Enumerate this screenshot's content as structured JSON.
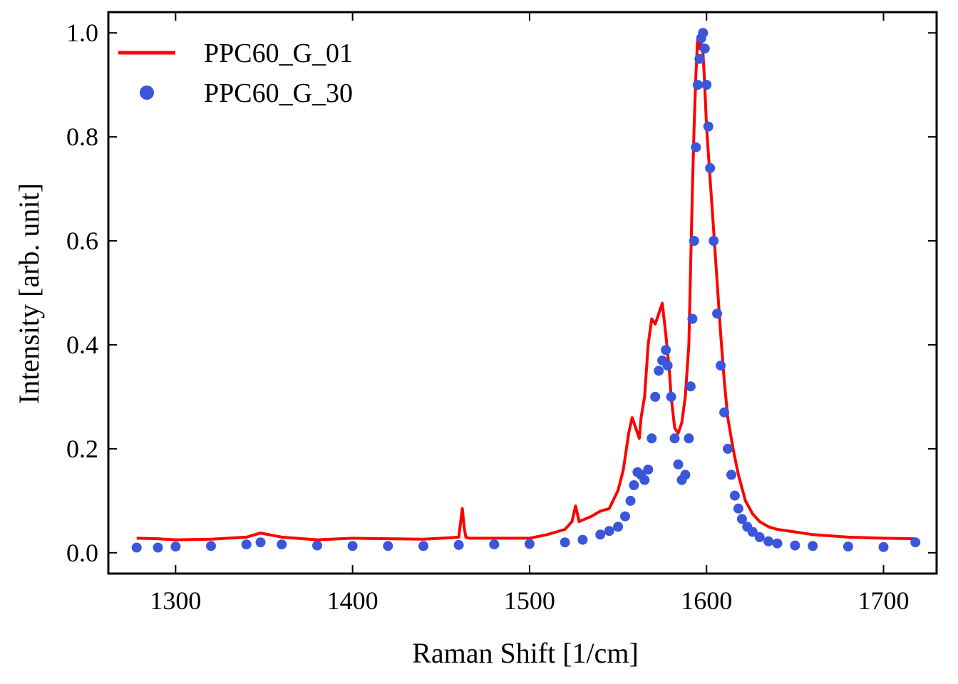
{
  "chart_data": {
    "type": "line",
    "xlabel": "Raman Shift [1/cm]",
    "ylabel": "Intensity [arb. unit]",
    "xlim": [
      1262,
      1730
    ],
    "ylim": [
      -0.04,
      1.04
    ],
    "x_ticks": [
      1300,
      1400,
      1500,
      1600,
      1700
    ],
    "x_tick_labels": [
      "1300",
      "1400",
      "1500",
      "1600",
      "1700"
    ],
    "y_ticks": [
      0.0,
      0.2,
      0.4,
      0.6,
      0.8,
      1.0
    ],
    "y_tick_labels": [
      "0.0",
      "0.2",
      "0.4",
      "0.6",
      "0.8",
      "1.0"
    ],
    "grid": false,
    "legend_position": "top-left",
    "series": [
      {
        "name": "PPC60_G_01",
        "style": "line",
        "color": "#ff0000",
        "x": [
          1278,
          1290,
          1300,
          1320,
          1340,
          1348,
          1360,
          1380,
          1400,
          1420,
          1440,
          1455,
          1460,
          1462,
          1463,
          1464,
          1466,
          1480,
          1500,
          1510,
          1520,
          1524,
          1526,
          1528,
          1535,
          1540,
          1545,
          1550,
          1553,
          1556,
          1558,
          1560,
          1562,
          1563,
          1565,
          1567,
          1569,
          1571,
          1573,
          1575,
          1577,
          1579,
          1580,
          1582,
          1584,
          1586,
          1588,
          1590,
          1591,
          1592,
          1593,
          1594,
          1595,
          1596,
          1597,
          1598,
          1599,
          1600,
          1602,
          1604,
          1606,
          1608,
          1610,
          1612,
          1615,
          1618,
          1622,
          1626,
          1630,
          1635,
          1640,
          1650,
          1660,
          1680,
          1700,
          1718
        ],
        "y": [
          0.028,
          0.027,
          0.025,
          0.026,
          0.03,
          0.038,
          0.03,
          0.025,
          0.028,
          0.027,
          0.026,
          0.029,
          0.03,
          0.085,
          0.05,
          0.03,
          0.028,
          0.028,
          0.028,
          0.035,
          0.045,
          0.06,
          0.09,
          0.06,
          0.07,
          0.08,
          0.085,
          0.12,
          0.16,
          0.23,
          0.26,
          0.24,
          0.22,
          0.26,
          0.3,
          0.4,
          0.45,
          0.44,
          0.46,
          0.48,
          0.42,
          0.35,
          0.3,
          0.24,
          0.23,
          0.25,
          0.3,
          0.4,
          0.55,
          0.7,
          0.82,
          0.92,
          0.99,
          0.97,
          0.98,
          0.96,
          0.9,
          0.82,
          0.72,
          0.62,
          0.52,
          0.42,
          0.33,
          0.26,
          0.2,
          0.15,
          0.1,
          0.075,
          0.06,
          0.05,
          0.045,
          0.04,
          0.035,
          0.03,
          0.028,
          0.027
        ]
      },
      {
        "name": "PPC60_G_30",
        "style": "points",
        "color": "#3a56db",
        "x": [
          1278,
          1290,
          1300,
          1320,
          1340,
          1348,
          1360,
          1380,
          1400,
          1420,
          1440,
          1460,
          1480,
          1500,
          1520,
          1530,
          1540,
          1545,
          1550,
          1554,
          1557,
          1559,
          1561,
          1563,
          1565,
          1567,
          1569,
          1571,
          1573,
          1575,
          1577,
          1578,
          1580,
          1582,
          1584,
          1586,
          1588,
          1590,
          1591,
          1592,
          1593,
          1594,
          1595,
          1596,
          1597,
          1598,
          1599,
          1600,
          1601,
          1602,
          1604,
          1606,
          1608,
          1610,
          1612,
          1614,
          1616,
          1618,
          1620,
          1623,
          1626,
          1630,
          1635,
          1640,
          1650,
          1660,
          1680,
          1700,
          1718
        ],
        "y": [
          0.01,
          0.01,
          0.012,
          0.013,
          0.016,
          0.02,
          0.016,
          0.014,
          0.013,
          0.013,
          0.013,
          0.015,
          0.016,
          0.017,
          0.02,
          0.025,
          0.035,
          0.042,
          0.05,
          0.07,
          0.1,
          0.13,
          0.155,
          0.15,
          0.14,
          0.16,
          0.22,
          0.3,
          0.35,
          0.37,
          0.39,
          0.36,
          0.3,
          0.22,
          0.17,
          0.14,
          0.15,
          0.22,
          0.32,
          0.45,
          0.6,
          0.78,
          0.9,
          0.95,
          0.99,
          1.0,
          0.97,
          0.9,
          0.82,
          0.74,
          0.6,
          0.46,
          0.36,
          0.27,
          0.2,
          0.15,
          0.11,
          0.085,
          0.065,
          0.05,
          0.04,
          0.03,
          0.022,
          0.018,
          0.014,
          0.013,
          0.012,
          0.011,
          0.02
        ]
      }
    ]
  }
}
